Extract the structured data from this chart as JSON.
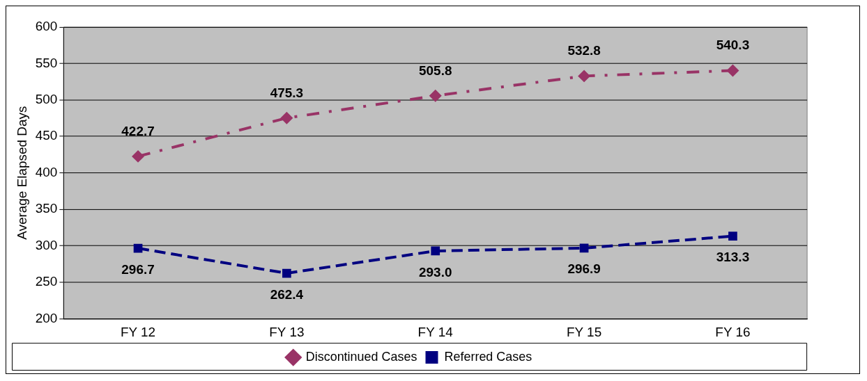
{
  "chart_data": {
    "type": "line",
    "ylabel": "Average Elapsed Days",
    "categories": [
      "FY 12",
      "FY 13",
      "FY 14",
      "FY 15",
      "FY 16"
    ],
    "series": [
      {
        "name": "Discontinued Cases",
        "color": "#993366",
        "values": [
          422.7,
          475.3,
          505.8,
          532.8,
          540.3
        ],
        "value_labels": [
          "422.7",
          "475.3",
          "505.8",
          "532.8",
          "540.3"
        ],
        "marker": "diamond",
        "line_style": "dashdot"
      },
      {
        "name": "Referred Cases",
        "color": "#000080",
        "values": [
          296.7,
          262.4,
          293.0,
          296.9,
          313.3
        ],
        "value_labels": [
          "296.7",
          "262.4",
          "293.0",
          "296.9",
          "313.3"
        ],
        "marker": "square",
        "line_style": "dashed"
      }
    ],
    "ylim": [
      200,
      600
    ],
    "yticks": [
      200,
      250,
      300,
      350,
      400,
      450,
      500,
      550,
      600
    ],
    "grid": "y",
    "legend": "bottom"
  }
}
